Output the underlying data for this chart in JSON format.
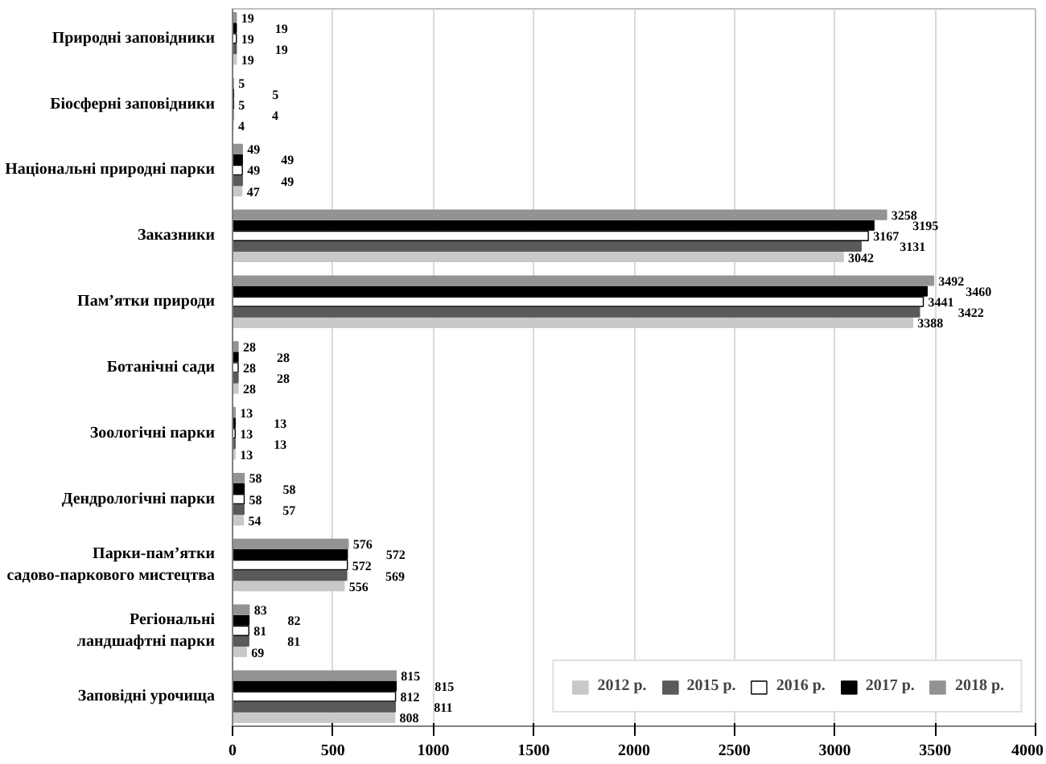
{
  "chart_data": {
    "type": "bar",
    "orientation": "horizontal",
    "categories": [
      "Природні заповідники",
      "Біосферні заповідники",
      "Національні природні парки",
      "Заказники",
      "Пам’ятки природи",
      "Ботанічні сади",
      "Зоологічні парки",
      "Дендрологічні парки",
      "Парки-пам’ятки\nсадово-паркового мистецтва",
      "Регіональні\nландшафтні парки",
      "Заповідні урочища"
    ],
    "series": [
      {
        "name": "2012 р.",
        "color": "#c8c8c8",
        "values": [
          19,
          4,
          47,
          3042,
          3388,
          28,
          13,
          54,
          556,
          69,
          808
        ]
      },
      {
        "name": "2015 р.",
        "color": "#5a5a5a",
        "values": [
          19,
          4,
          49,
          3131,
          3422,
          28,
          13,
          57,
          569,
          81,
          811
        ]
      },
      {
        "name": "2016 р.",
        "color": "#ffffff",
        "values": [
          19,
          5,
          49,
          3167,
          3441,
          28,
          13,
          58,
          572,
          81,
          812
        ]
      },
      {
        "name": "2017 р.",
        "color": "#000000",
        "values": [
          19,
          5,
          49,
          3195,
          3460,
          28,
          13,
          58,
          572,
          82,
          815
        ]
      },
      {
        "name": "2018 р.",
        "color": "#939393",
        "values": [
          19,
          5,
          49,
          3258,
          3492,
          28,
          13,
          58,
          576,
          83,
          815
        ]
      }
    ],
    "xlim": [
      0,
      4000
    ],
    "xticks": [
      0,
      500,
      1000,
      1500,
      2000,
      2500,
      3000,
      3500,
      4000
    ],
    "grid": "x",
    "legend": "bottom right",
    "data_labels": true
  }
}
